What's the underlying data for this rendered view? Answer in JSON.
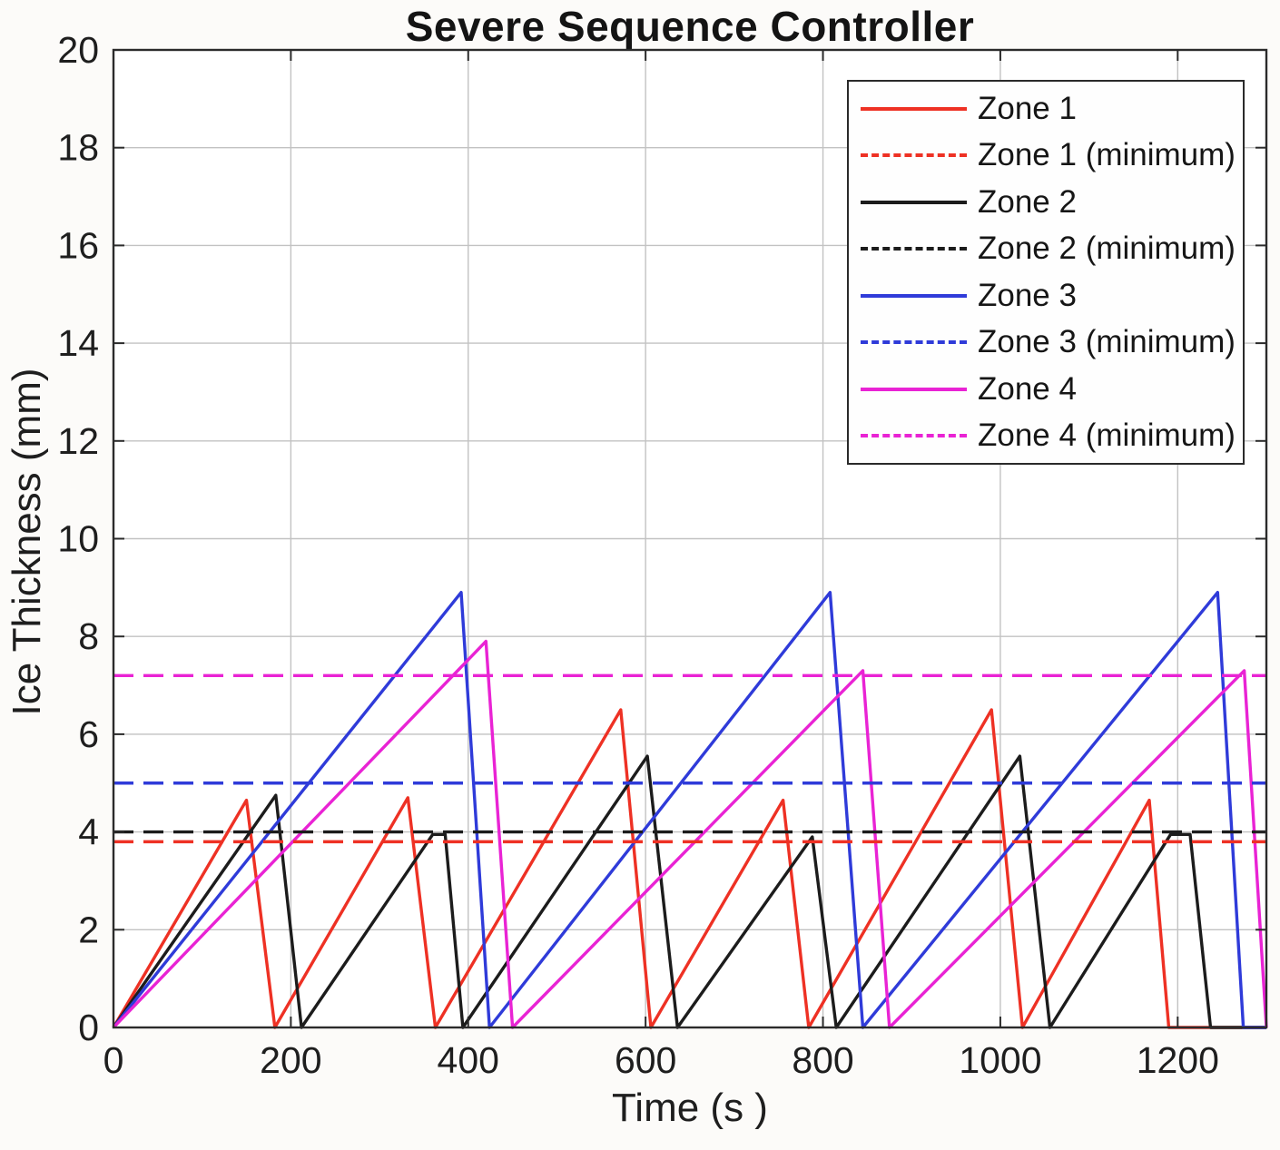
{
  "chart_data": {
    "type": "line",
    "title": "Severe Sequence Controller",
    "xlabel": "Time (s )",
    "ylabel": "Ice Thickness (mm)",
    "xlim": [
      0,
      1300
    ],
    "ylim": [
      0,
      20
    ],
    "xticks": [
      0,
      200,
      400,
      600,
      800,
      1000,
      1200
    ],
    "yticks": [
      0,
      2,
      4,
      6,
      8,
      10,
      12,
      14,
      16,
      18,
      20
    ],
    "grid": true,
    "legend_position": "upper right",
    "colors": {
      "zone1": "#ee3124",
      "zone2": "#1c1c1c",
      "zone3": "#2f3bd9",
      "zone4": "#e923d4",
      "gridline": "#c2c2c2",
      "axis": "#2b2b2b"
    },
    "series": [
      {
        "name": "Zone 1",
        "color": "#ee3124",
        "style": "solid",
        "points": [
          [
            0,
            0
          ],
          [
            150,
            4.65
          ],
          [
            182,
            0
          ],
          [
            332,
            4.7
          ],
          [
            363,
            0
          ],
          [
            572,
            6.5
          ],
          [
            606,
            0
          ],
          [
            755,
            4.65
          ],
          [
            784,
            0
          ],
          [
            990,
            6.5
          ],
          [
            1025,
            0
          ],
          [
            1168,
            4.65
          ],
          [
            1190,
            0
          ],
          [
            1300,
            0
          ]
        ]
      },
      {
        "name": "Zone 1 (minimum)",
        "color": "#ee3124",
        "style": "dashed",
        "threshold": 3.8
      },
      {
        "name": "Zone 2",
        "color": "#1c1c1c",
        "style": "solid",
        "points": [
          [
            0,
            0
          ],
          [
            183,
            4.75
          ],
          [
            212,
            0
          ],
          [
            360,
            3.95
          ],
          [
            374,
            3.95
          ],
          [
            394,
            0
          ],
          [
            602,
            5.55
          ],
          [
            636,
            0
          ],
          [
            788,
            3.9
          ],
          [
            815,
            0
          ],
          [
            1022,
            5.55
          ],
          [
            1056,
            0
          ],
          [
            1192,
            3.95
          ],
          [
            1214,
            3.95
          ],
          [
            1237,
            0
          ],
          [
            1300,
            0
          ]
        ]
      },
      {
        "name": "Zone 2 (minimum)",
        "color": "#1c1c1c",
        "style": "dashed",
        "threshold": 4.0
      },
      {
        "name": "Zone 3",
        "color": "#2f3bd9",
        "style": "solid",
        "points": [
          [
            0,
            0
          ],
          [
            392,
            8.9
          ],
          [
            424,
            0
          ],
          [
            808,
            8.9
          ],
          [
            845,
            0
          ],
          [
            1245,
            8.9
          ],
          [
            1274,
            0
          ],
          [
            1300,
            0
          ]
        ]
      },
      {
        "name": "Zone 3 (minimum)",
        "color": "#2f3bd9",
        "style": "dashed",
        "threshold": 5.0
      },
      {
        "name": "Zone 4",
        "color": "#e923d4",
        "style": "solid",
        "points": [
          [
            0,
            0
          ],
          [
            420,
            7.9
          ],
          [
            450,
            0
          ],
          [
            845,
            7.3
          ],
          [
            875,
            0
          ],
          [
            1275,
            7.3
          ],
          [
            1300,
            0
          ]
        ]
      },
      {
        "name": "Zone 4 (minimum)",
        "color": "#e923d4",
        "style": "dashed",
        "threshold": 7.2
      }
    ]
  }
}
